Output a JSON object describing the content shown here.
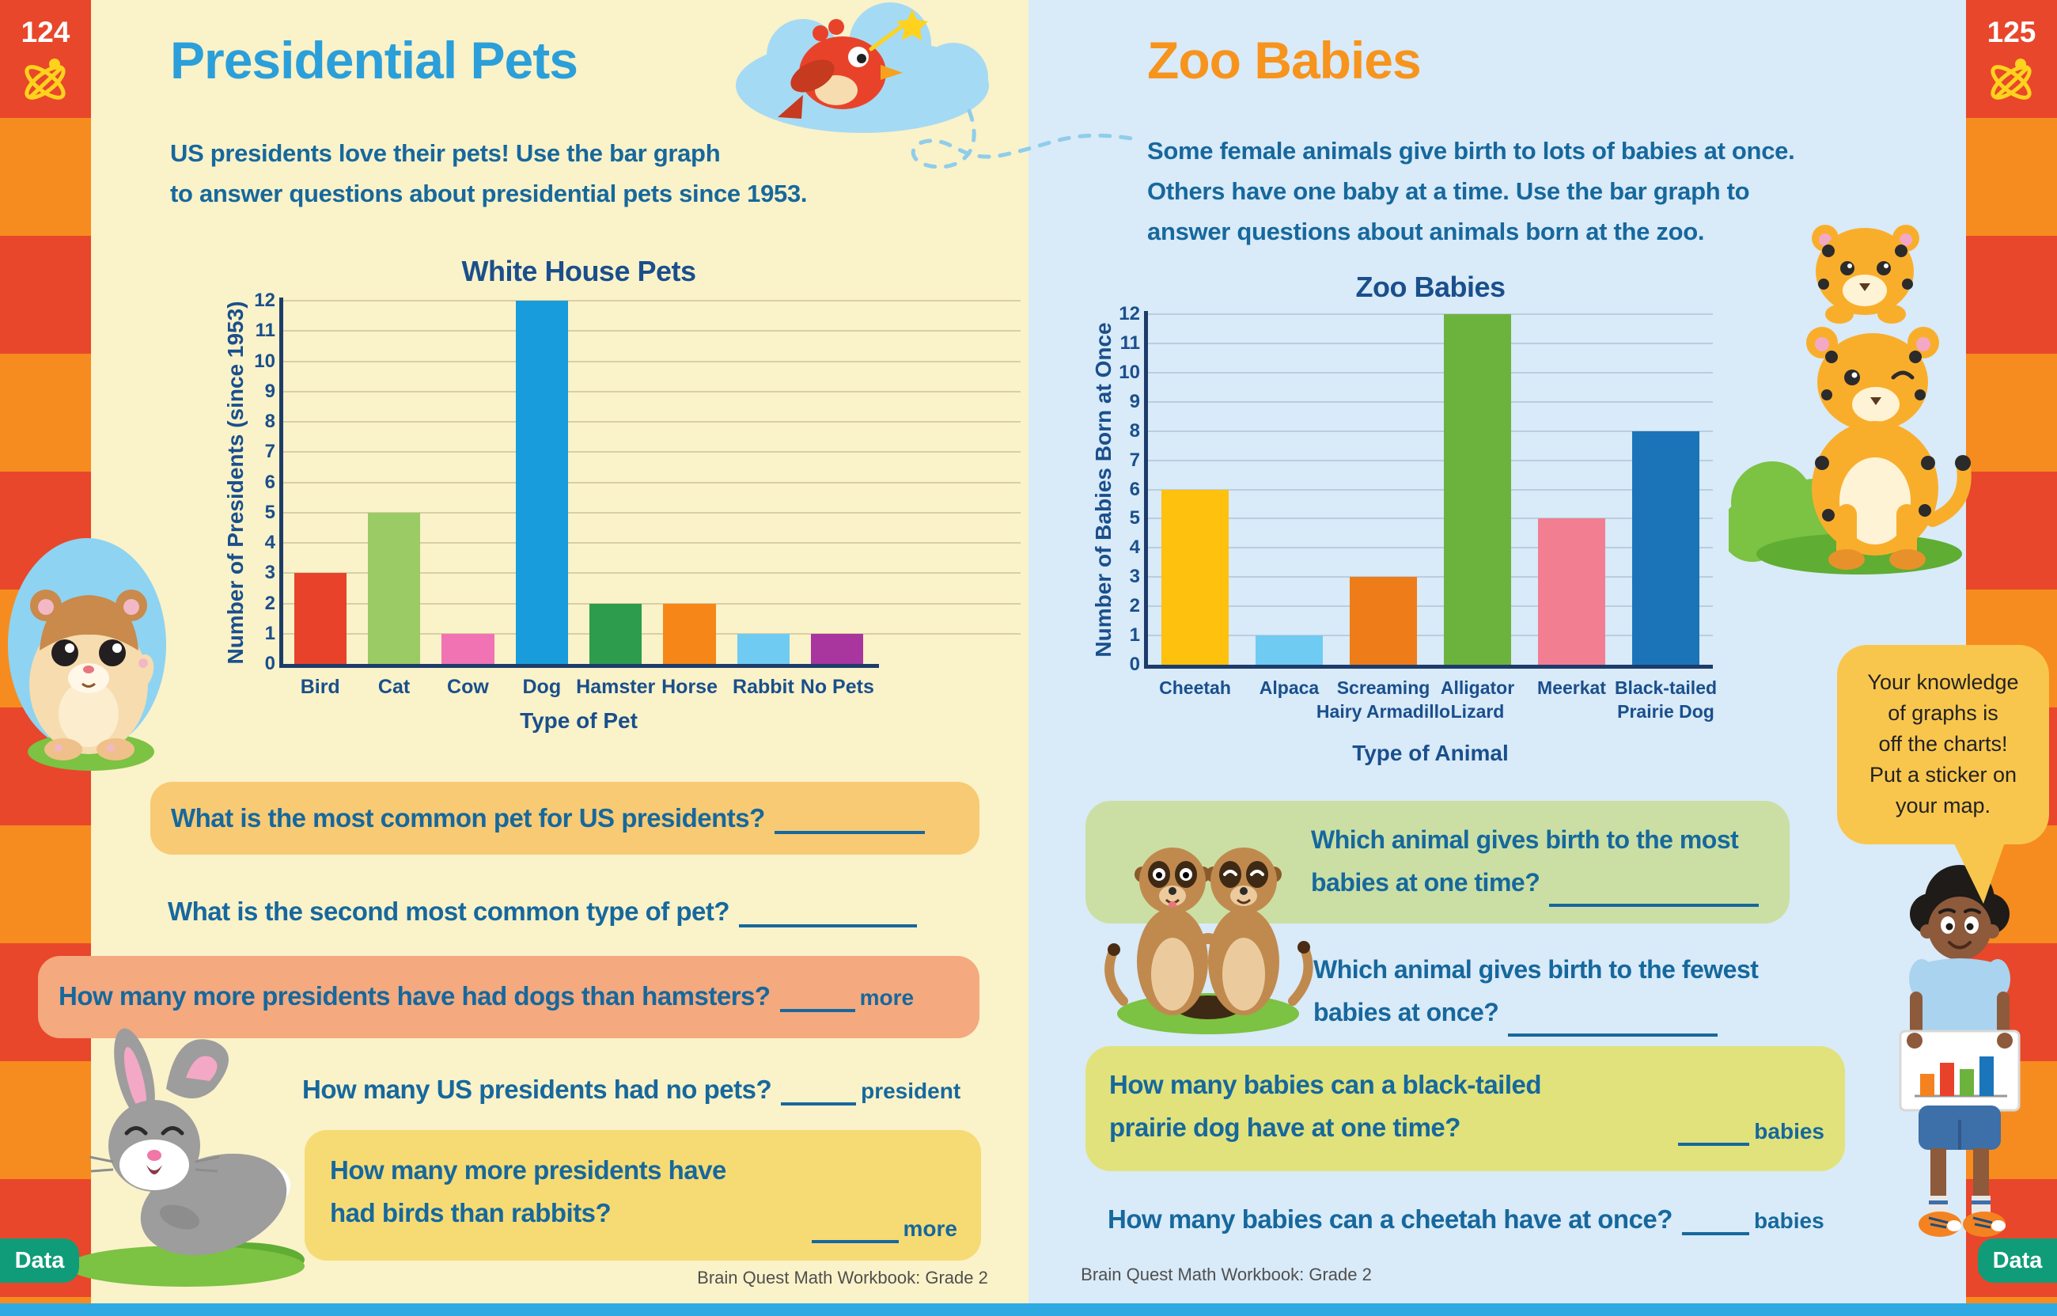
{
  "left_page": {
    "page_number": "124",
    "title": "Presidential Pets",
    "intro": [
      "US presidents love their pets! Use the bar graph",
      "to answer questions about presidential pets since 1953."
    ],
    "q1": {
      "text": "What is the most common pet for US presidents?"
    },
    "q2": {
      "text": "What is the second most common type of pet?"
    },
    "q3": {
      "text": "How many more presidents have had dogs than hamsters?",
      "suffix": "more"
    },
    "q4": {
      "text": "How many US presidents had no pets?",
      "suffix": "president"
    },
    "q5": {
      "line1": "How many more presidents have",
      "line2": "had birds than rabbits?",
      "suffix": "more"
    },
    "data_badge": "Data",
    "footer": "Brain Quest Math Workbook: Grade 2"
  },
  "right_page": {
    "page_number": "125",
    "title": "Zoo Babies",
    "intro": [
      "Some female animals give birth to lots of babies at once.",
      "Others have one baby at a time. Use the bar graph to",
      "answer questions about animals born at the zoo."
    ],
    "q1": {
      "line1": "Which animal gives birth to the most",
      "line2": "babies at one time?"
    },
    "q2": {
      "line1": "Which animal gives birth to the fewest",
      "line2": "babies at once?"
    },
    "q3": {
      "line1": "How many babies can a black-tailed",
      "line2": "prairie dog have at one time?",
      "suffix": "babies"
    },
    "q4": {
      "text": "How many babies can a cheetah have at once?",
      "suffix": "babies"
    },
    "speech_bubble": [
      "Your knowledge",
      "of graphs is",
      "off the charts!",
      "Put a sticker on",
      "your map."
    ],
    "data_badge": "Data",
    "footer": "Brain Quest Math Workbook: Grade 2"
  },
  "chart_data": [
    {
      "type": "bar",
      "title": "White House Pets",
      "xlabel": "Type of Pet",
      "ylabel": "Number of Presidents (since 1953)",
      "ylim": [
        0,
        12
      ],
      "ytick_step": 1,
      "grid": true,
      "legend": "none",
      "categories": [
        "Bird",
        "Cat",
        "Cow",
        "Dog",
        "Hamster",
        "Horse",
        "Rabbit",
        "No Pets"
      ],
      "values": [
        3,
        5,
        1,
        12,
        2,
        2,
        1,
        1
      ],
      "bar_colors": [
        "#e8432a",
        "#9bcb64",
        "#f173b4",
        "#199cdb",
        "#2d9c4d",
        "#f58617",
        "#70cbf3",
        "#a8369e"
      ]
    },
    {
      "type": "bar",
      "title": "Zoo Babies",
      "xlabel": "Type of Animal",
      "ylabel": "Number of Babies Born at Once",
      "ylim": [
        0,
        12
      ],
      "ytick_step": 1,
      "grid": true,
      "legend": "none",
      "categories": [
        "Cheetah",
        "Alpaca",
        "Screaming\nHairy Armadillo",
        "Alligator\nLizard",
        "Meerkat",
        "Black-tailed\nPrairie Dog"
      ],
      "values": [
        6,
        1,
        3,
        12,
        5,
        8
      ],
      "bar_colors": [
        "#fec10d",
        "#70cbf3",
        "#ee7c19",
        "#6cb33e",
        "#f27e92",
        "#1b74b8"
      ]
    }
  ],
  "colors": {
    "left_page_bg": "#faf2c9",
    "right_page_bg": "#d9eaf8",
    "left_title": "#2b9fd9",
    "right_title": "#f7941d",
    "body_text": "#16689d",
    "chart_text": "#1a4f8c",
    "axis": "#1d3c6a",
    "strip_red": "#e8472c",
    "strip_orange": "#f68c1f",
    "badge_green": "#109c78",
    "bubble_yellow": "#f9c64d",
    "q_box_orange": "#f8ca74",
    "q_box_salmon": "#f4a97e",
    "q_box_yellow": "#f6db74",
    "q_box_green": "#cbdfa4",
    "q_box_lime": "#e1e27b",
    "bottom_strip_blue": "#2fa9e1"
  }
}
